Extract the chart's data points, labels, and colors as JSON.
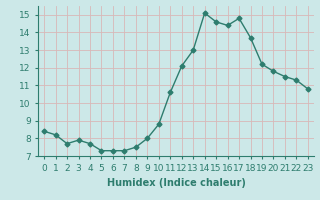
{
  "x": [
    0,
    1,
    2,
    3,
    4,
    5,
    6,
    7,
    8,
    9,
    10,
    11,
    12,
    13,
    14,
    15,
    16,
    17,
    18,
    19,
    20,
    21,
    22,
    23
  ],
  "y": [
    8.4,
    8.2,
    7.7,
    7.9,
    7.7,
    7.3,
    7.3,
    7.3,
    7.5,
    8.0,
    8.8,
    10.6,
    12.1,
    13.0,
    15.1,
    14.6,
    14.4,
    14.8,
    13.7,
    12.2,
    11.8,
    11.5,
    11.3,
    10.8
  ],
  "line_color": "#2e7d6e",
  "marker": "D",
  "marker_size": 2.5,
  "bg_color": "#cce8e8",
  "grid_color": "#b0d0d0",
  "xlabel": "Humidex (Indice chaleur)",
  "xlim": [
    -0.5,
    23.5
  ],
  "ylim": [
    7.0,
    15.5
  ],
  "yticks": [
    7,
    8,
    9,
    10,
    11,
    12,
    13,
    14,
    15
  ],
  "xticks": [
    0,
    1,
    2,
    3,
    4,
    5,
    6,
    7,
    8,
    9,
    10,
    11,
    12,
    13,
    14,
    15,
    16,
    17,
    18,
    19,
    20,
    21,
    22,
    23
  ],
  "xtick_labels": [
    "0",
    "1",
    "2",
    "3",
    "4",
    "5",
    "6",
    "7",
    "8",
    "9",
    "10",
    "11",
    "12",
    "13",
    "14",
    "15",
    "16",
    "17",
    "18",
    "19",
    "20",
    "21",
    "22",
    "23"
  ],
  "tick_color": "#2e7d6e",
  "label_fontsize": 7,
  "tick_fontsize": 6.5
}
